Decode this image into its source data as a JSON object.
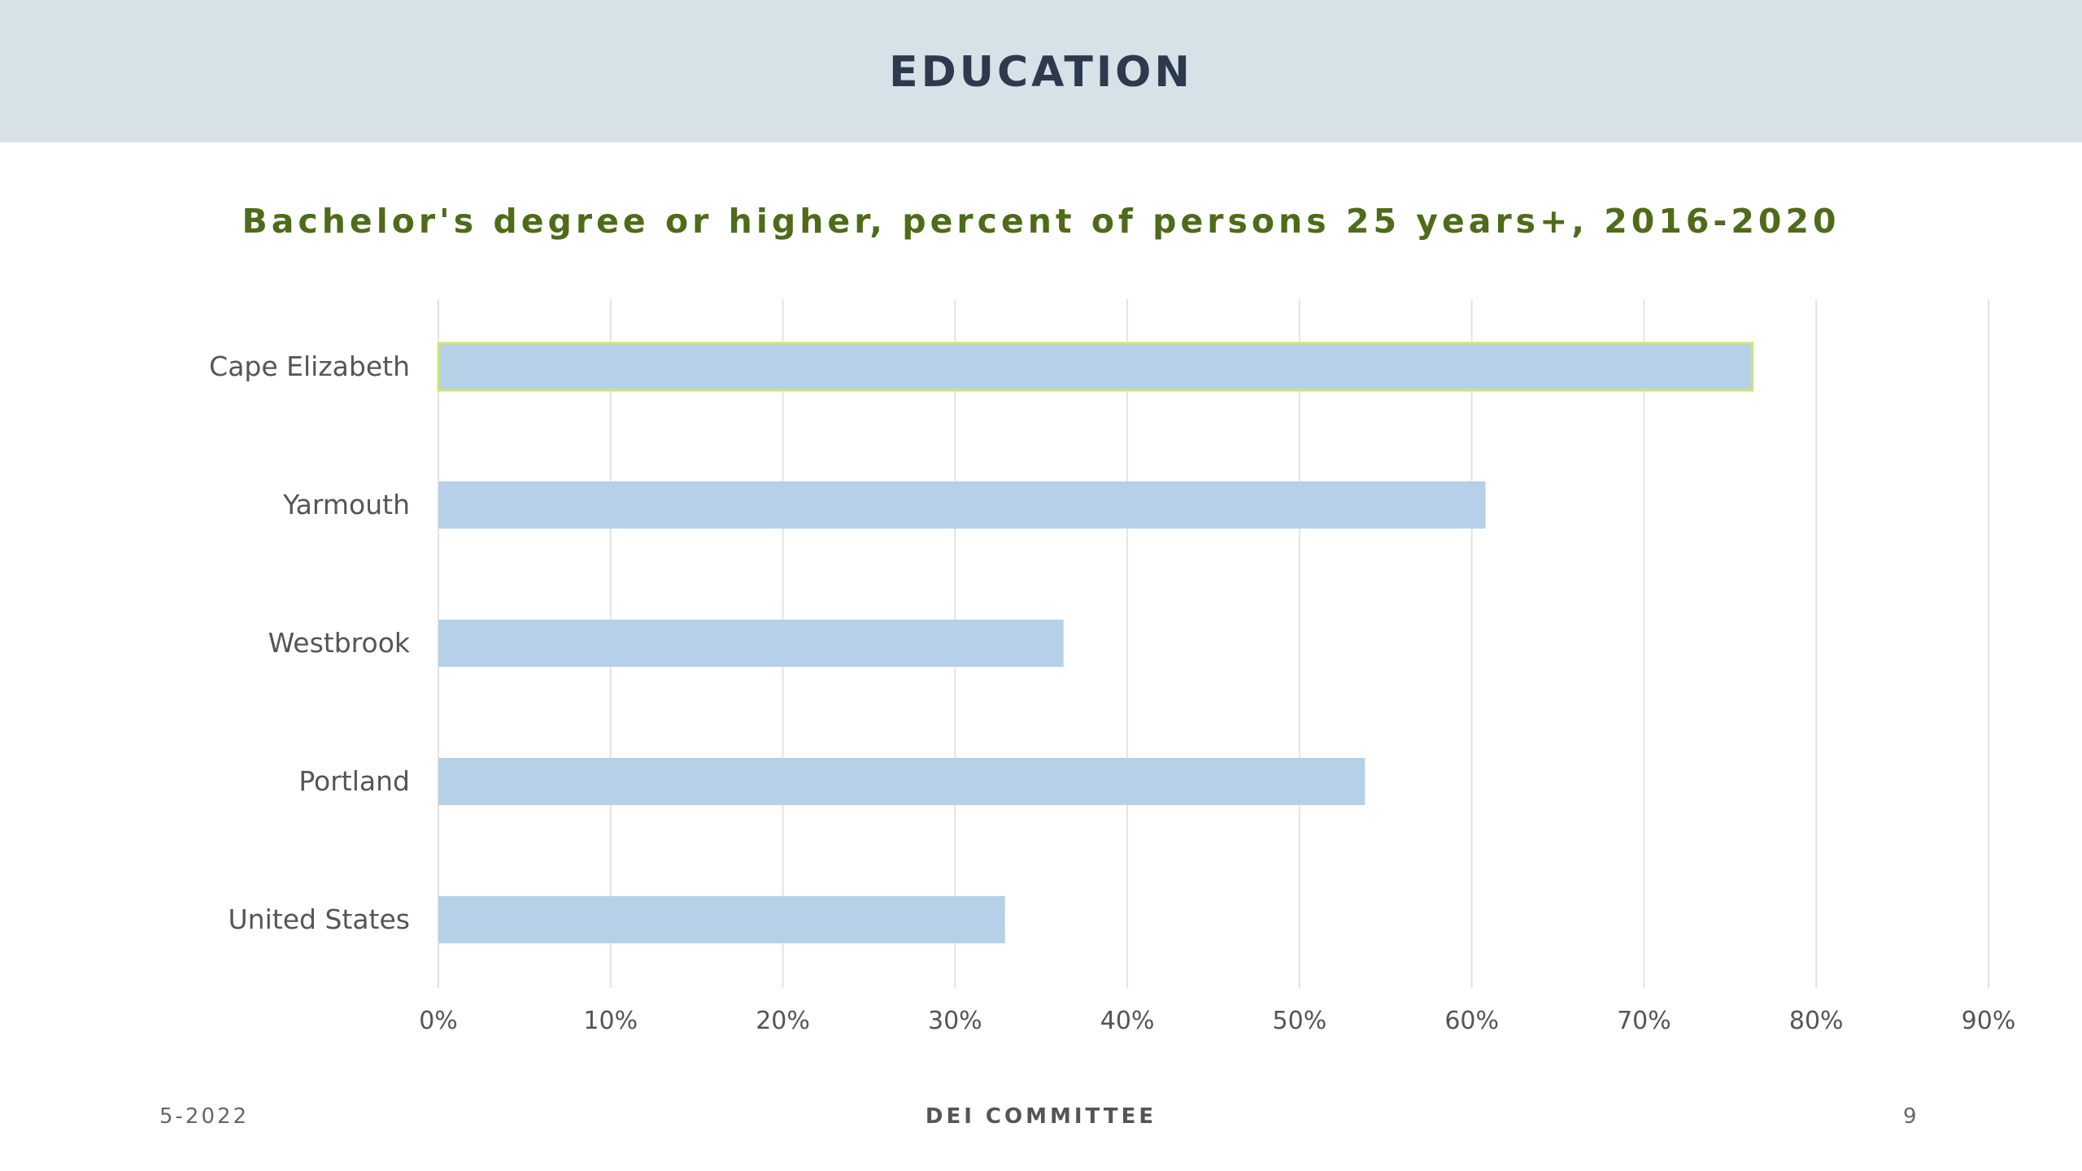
{
  "slide": {
    "title": "EDUCATION",
    "footer_date": "5-2022",
    "footer_center": "DEI COMMITTEE",
    "page_number": "9"
  },
  "colors": {
    "header_band": "#d6e1e8",
    "title_text": "#2d3a4d",
    "chart_title": "#4f6b19",
    "bar_fill": "#b6d0e8",
    "highlight_outline": "#cfe86a",
    "gridline": "#e3e3e3"
  },
  "chart_data": {
    "type": "bar",
    "orientation": "horizontal",
    "title": "Bachelor's degree or higher, percent of persons 25 years+, 2016-2020",
    "categories": [
      "Cape Elizabeth",
      "Yarmouth",
      "Westbrook",
      "Portland",
      "United States"
    ],
    "values": [
      76.3,
      60.8,
      36.3,
      53.8,
      32.9
    ],
    "highlighted_category": "Cape Elizabeth",
    "xlim": [
      0,
      90
    ],
    "x_ticks": [
      "0%",
      "10%",
      "20%",
      "30%",
      "40%",
      "50%",
      "60%",
      "70%",
      "80%",
      "90%"
    ],
    "grid": "vertical",
    "legend": "none"
  }
}
